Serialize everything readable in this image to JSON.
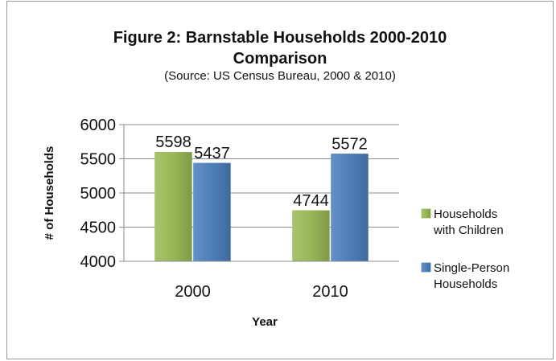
{
  "chart_data": {
    "type": "bar",
    "title_line1": "Figure 2:  Barnstable Households 2000-2010",
    "title_line2": "Comparison",
    "subtitle": "(Source: US Census Bureau, 2000 & 2010)",
    "xlabel": "Year",
    "ylabel": "# of Households",
    "categories": [
      "2000",
      "2010"
    ],
    "series": [
      {
        "name": "Households with Children",
        "legend_lines": [
          "Households",
          "with Children"
        ],
        "values": [
          5598,
          4744
        ],
        "color": "#9bbb59"
      },
      {
        "name": "Single-Person Households",
        "legend_lines": [
          "Single-Person",
          "Households"
        ],
        "values": [
          5437,
          5572
        ],
        "color": "#4f81bd"
      }
    ],
    "ylim": [
      4000,
      6000
    ],
    "yticks": [
      "4000",
      "4500",
      "5000",
      "5500",
      "6000"
    ],
    "grid": true,
    "legend": "right"
  }
}
